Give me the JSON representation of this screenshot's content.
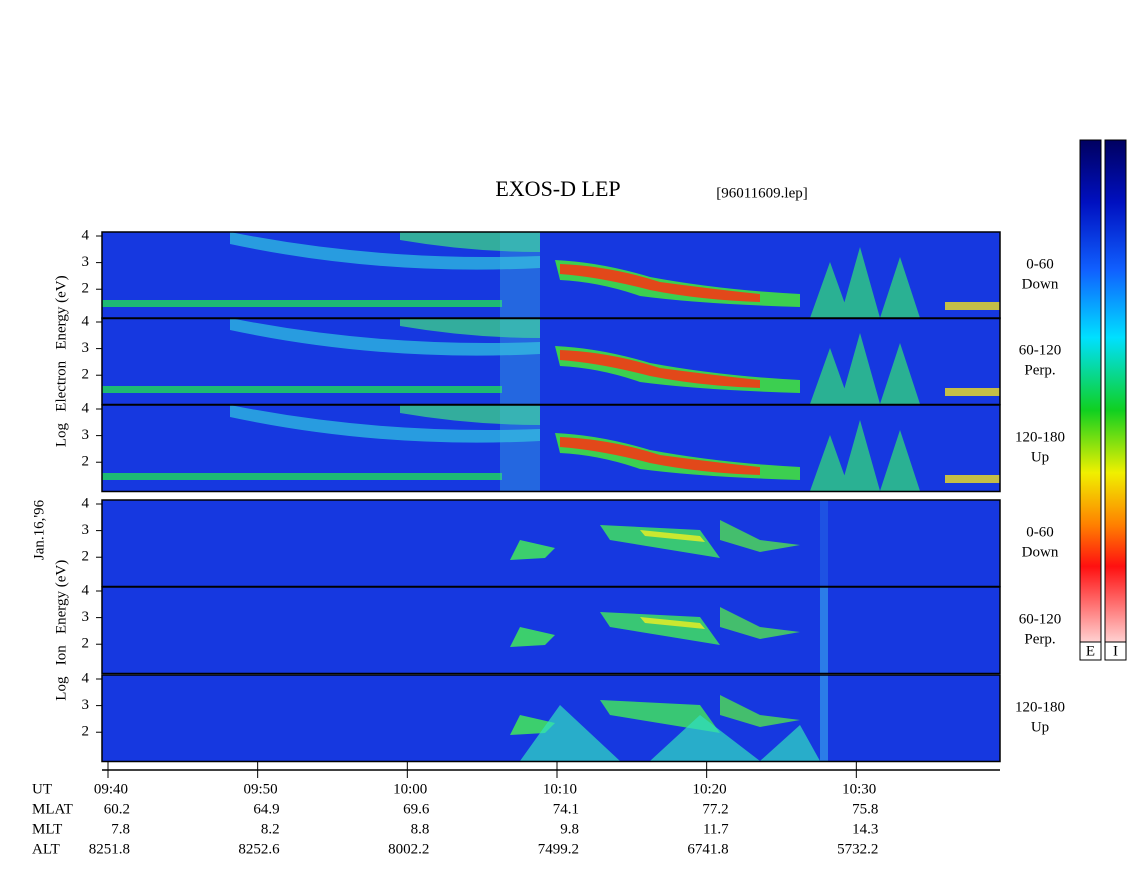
{
  "title": "EXOS-D LEP",
  "file": "[96011609.lep]",
  "date": "Jan.16,'96",
  "groups": [
    {
      "ylabel": "Log   Electron   Energy (eV)",
      "panels": [
        {
          "angle": "0-60",
          "dir": "Down"
        },
        {
          "angle": "60-120",
          "dir": "Perp."
        },
        {
          "angle": "120-180",
          "dir": "Up"
        }
      ]
    },
    {
      "ylabel": "Log   Ion   Energy (eV)",
      "panels": [
        {
          "angle": "0-60",
          "dir": "Down"
        },
        {
          "angle": "60-120",
          "dir": "Perp."
        },
        {
          "angle": "120-180",
          "dir": "Up"
        }
      ]
    }
  ],
  "ylim": [
    0.9,
    4.15
  ],
  "yticks": [
    2,
    3,
    4
  ],
  "time_axis": {
    "label": "UT",
    "xlim": [
      579.6,
      639.6
    ],
    "xticks": [
      {
        "value": 580,
        "label": "09:40"
      },
      {
        "value": 590,
        "label": "09:50"
      },
      {
        "value": 600,
        "label": "10:00"
      },
      {
        "value": 610,
        "label": "10:10"
      },
      {
        "value": 620,
        "label": "10:20"
      },
      {
        "value": 630,
        "label": "10:30"
      }
    ]
  },
  "ephemeris": [
    {
      "name": "MLAT",
      "values": [
        "60.2",
        "64.9",
        "69.6",
        "74.1",
        "77.2",
        "75.8"
      ]
    },
    {
      "name": "MLT",
      "values": [
        "7.8",
        "8.2",
        "8.8",
        "9.8",
        "11.7",
        "14.3"
      ]
    },
    {
      "name": "ALT",
      "values": [
        "8251.8",
        "8252.6",
        "8002.2",
        "7499.2",
        "6741.8",
        "5732.2"
      ]
    }
  ],
  "colorbars": [
    "E",
    "I"
  ]
}
